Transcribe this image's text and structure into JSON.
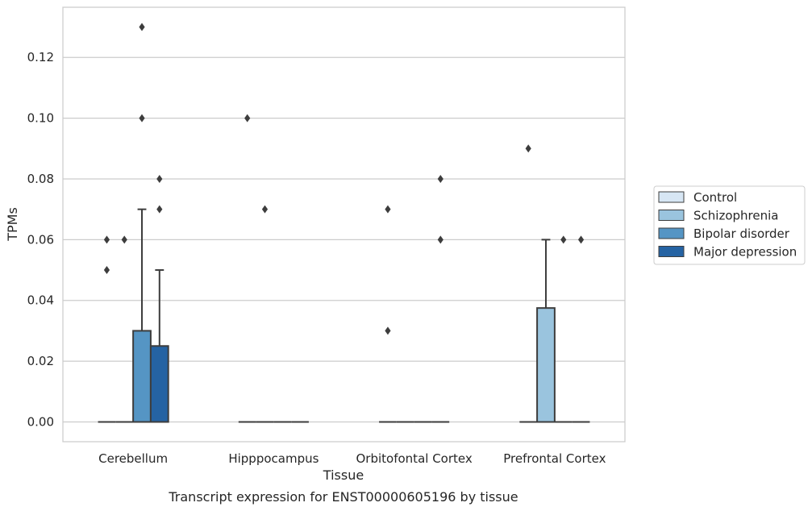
{
  "chart_data": {
    "type": "boxplot",
    "title": "",
    "xlabel": "Tissue",
    "ylabel": "TPMs",
    "caption": "Transcript expression for ENST00000605196 by tissue",
    "ylim": [
      -0.0065,
      0.1365
    ],
    "yticks": [
      0.0,
      0.02,
      0.04,
      0.06,
      0.08,
      0.1,
      0.12
    ],
    "ytick_labels": [
      "0.00",
      "0.02",
      "0.04",
      "0.06",
      "0.08",
      "0.10",
      "0.12"
    ],
    "grid": true,
    "legend_position": "right",
    "categories": [
      "Cerebellum",
      "Hipppocampus",
      "Orbitofontal Cortex",
      "Prefrontal Cortex"
    ],
    "series": [
      {
        "name": "Control",
        "color": "#d7e6f4",
        "boxes": [
          {
            "q1": 0,
            "median": 0,
            "q3": 0,
            "whisker_low": 0,
            "whisker_high": 0,
            "outliers": [
              0.05,
              0.06
            ]
          },
          {
            "q1": 0,
            "median": 0,
            "q3": 0,
            "whisker_low": 0,
            "whisker_high": 0,
            "outliers": [
              0.1
            ]
          },
          {
            "q1": 0,
            "median": 0,
            "q3": 0,
            "whisker_low": 0,
            "whisker_high": 0,
            "outliers": [
              0.03,
              0.07
            ]
          },
          {
            "q1": 0,
            "median": 0,
            "q3": 0,
            "whisker_low": 0,
            "whisker_high": 0,
            "outliers": [
              0.09
            ]
          }
        ]
      },
      {
        "name": "Schizophrenia",
        "color": "#9ac4de",
        "boxes": [
          {
            "q1": 0,
            "median": 0,
            "q3": 0,
            "whisker_low": 0,
            "whisker_high": 0,
            "outliers": [
              0.06
            ]
          },
          {
            "q1": 0,
            "median": 0,
            "q3": 0,
            "whisker_low": 0,
            "whisker_high": 0,
            "outliers": [
              0.07
            ]
          },
          {
            "q1": 0,
            "median": 0,
            "q3": 0,
            "whisker_low": 0,
            "whisker_high": 0,
            "outliers": []
          },
          {
            "q1": 0,
            "median": 0,
            "q3": 0.0375,
            "whisker_low": 0,
            "whisker_high": 0.06,
            "outliers": []
          }
        ]
      },
      {
        "name": "Bipolar disorder",
        "color": "#5595c4",
        "boxes": [
          {
            "q1": 0,
            "median": 0,
            "q3": 0.03,
            "whisker_low": 0,
            "whisker_high": 0.07,
            "outliers": [
              0.1,
              0.13
            ]
          },
          {
            "q1": 0,
            "median": 0,
            "q3": 0,
            "whisker_low": 0,
            "whisker_high": 0,
            "outliers": []
          },
          {
            "q1": 0,
            "median": 0,
            "q3": 0,
            "whisker_low": 0,
            "whisker_high": 0,
            "outliers": []
          },
          {
            "q1": 0,
            "median": 0,
            "q3": 0,
            "whisker_low": 0,
            "whisker_high": 0,
            "outliers": [
              0.06
            ]
          }
        ]
      },
      {
        "name": "Major depression",
        "color": "#2563a3",
        "boxes": [
          {
            "q1": 0,
            "median": 0,
            "q3": 0.025,
            "whisker_low": 0,
            "whisker_high": 0.05,
            "outliers": [
              0.07,
              0.08
            ]
          },
          {
            "q1": 0,
            "median": 0,
            "q3": 0,
            "whisker_low": 0,
            "whisker_high": 0,
            "outliers": []
          },
          {
            "q1": 0,
            "median": 0,
            "q3": 0,
            "whisker_low": 0,
            "whisker_high": 0,
            "outliers": [
              0.06,
              0.08
            ]
          },
          {
            "q1": 0,
            "median": 0,
            "q3": 0,
            "whisker_low": 0,
            "whisker_high": 0,
            "outliers": [
              0.06
            ]
          }
        ]
      }
    ]
  }
}
